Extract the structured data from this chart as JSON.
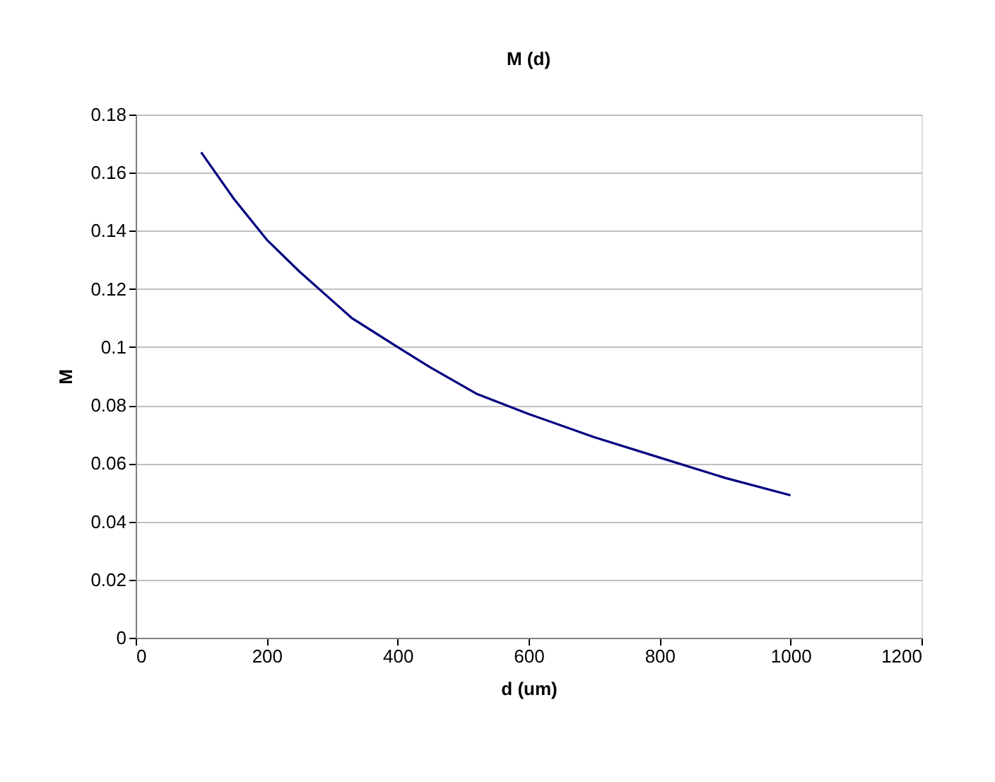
{
  "chart_data": {
    "type": "line",
    "title": "M (d)",
    "xlabel": "d (um)",
    "ylabel": "M",
    "x": [
      100,
      150,
      200,
      250,
      300,
      330,
      400,
      450,
      520,
      600,
      700,
      800,
      900,
      1000
    ],
    "series": [
      {
        "color": "#000080",
        "values": [
          0.167,
          0.151,
          0.137,
          0.126,
          0.116,
          0.11,
          0.1,
          0.093,
          0.084,
          0.077,
          0.069,
          0.062,
          0.055,
          0.049
        ]
      }
    ],
    "xlim": [
      0,
      1200
    ],
    "xticks": [
      0,
      200,
      400,
      600,
      800,
      1000,
      1200
    ],
    "ylim": [
      0,
      0.18
    ],
    "yticks": [
      0,
      0.02,
      0.04,
      0.06,
      0.08,
      0.1,
      0.12,
      0.14,
      0.16,
      0.18
    ],
    "grid": "y",
    "marker": "none",
    "line_style": "solid"
  }
}
